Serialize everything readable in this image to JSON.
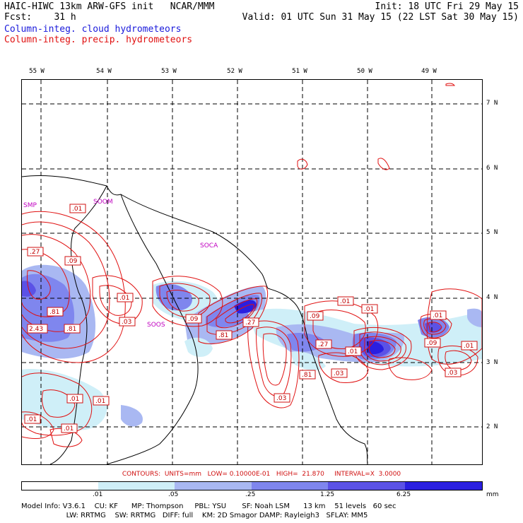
{
  "header": {
    "title_left": "HAIC-HIWC 13km ARW-GFS init   NCAR/MMM",
    "init": "Init: 18 UTC Fri 29 May 15",
    "fcst_label": "Fcst:",
    "fcst_value": "31 h",
    "valid": "Valid: 01 UTC Sun 31 May 15 (22 LST Sat 30 May 15)",
    "field_cloud": "Column-integ. cloud hydrometeors",
    "field_precip": "Column-integ. precip. hydrometeors"
  },
  "longitudes": [
    "55 W",
    "54 W",
    "53 W",
    "52 W",
    "51 W",
    "50 W",
    "49 W"
  ],
  "latitudes": [
    "7 N",
    "6 N",
    "5 N",
    "4 N",
    "3 N",
    "2 N"
  ],
  "stations": [
    "SMP",
    "SOOM",
    "SOCA",
    "SOOS"
  ],
  "contour_labels": [
    ".01",
    ".27",
    ".09",
    ".01",
    ".03",
    ".81",
    ".81",
    "2.43",
    ".01",
    ".01",
    ".01",
    ".01",
    ".09",
    ".81",
    ".27",
    ".09",
    ".01",
    ".01",
    ".27",
    ".01",
    ".81",
    ".03",
    ".03",
    ".01",
    ".09",
    ".01",
    ".03"
  ],
  "contour_info": "CONTOURS:  UNITS=mm   LOW= 0.10000E-01   HIGH=  21.870     INTERVAL=X  3.0000",
  "colorbar": {
    "ticks": [
      ".01",
      ".05",
      ".25",
      "1.25",
      "6.25"
    ],
    "units": "mm",
    "colors": [
      "#ffffff",
      "#cfeff8",
      "#a9b8f2",
      "#7f86ee",
      "#5b52e6",
      "#2a1fe0"
    ]
  },
  "model_info": {
    "line1": "Model Info: V3.6.1    CU: KF      MP: Thompson     PBL: YSU       SF: Noah LSM      13 km    51 levels   60 sec",
    "line2": "                    LW: RRTMG    SW: RRTMG   DIFF: full    KM: 2D Smagor DAMP: Rayleigh3   SFLAY: MM5"
  }
}
